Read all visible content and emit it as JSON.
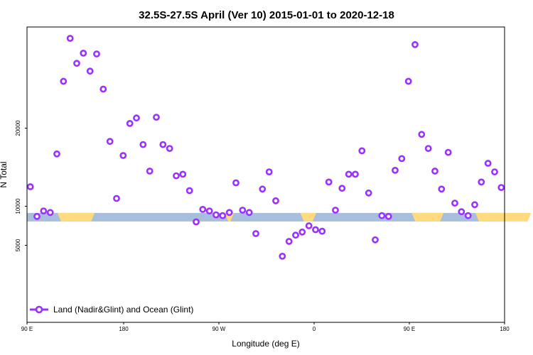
{
  "chart_data": {
    "type": "scatter",
    "title": "32.5S-27.5S April (Ver 10)   2015-01-01 to 2020-12-18",
    "xlabel": "Longitude (deg E)",
    "ylabel": "N Total",
    "xlim": [
      90,
      450
    ],
    "ylim": [
      3000,
      34500
    ],
    "x_ticks": [
      {
        "value": 90,
        "label": "90 E"
      },
      {
        "value": 180,
        "label": "180"
      },
      {
        "value": 270,
        "label": "90 W"
      },
      {
        "value": 360,
        "label": "0"
      },
      {
        "value": 450,
        "label": "90 E"
      },
      {
        "value": 540,
        "label": "180"
      }
    ],
    "y_ticks": [
      {
        "value": 5000,
        "label": "5000"
      },
      {
        "value": 10000,
        "label": "10000"
      },
      {
        "value": 20000,
        "label": "20000"
      }
    ],
    "grid": false,
    "legend": {
      "position": "bottom-left",
      "label": "Land (Nadir&Glint) and Ocean (Glint)",
      "color": "#9B30FF"
    },
    "band": {
      "y_center": 8600,
      "ocean_color": "#A8BEDD",
      "land_color": "#FFDA7F",
      "land_segments": [
        [
          113,
          141
        ],
        [
          239,
          246
        ],
        [
          296,
          308
        ],
        [
          380,
          404
        ],
        [
          428,
          470
        ]
      ]
    },
    "series": [
      {
        "name": "Land (Nadir&Glint) and Ocean (Glint)",
        "color": "#9B30FF",
        "x": [
          92.5,
          97.5,
          102.5,
          107.5,
          112.5,
          117.5,
          122.5,
          127.5,
          132.5,
          137.5,
          142.5,
          147.5,
          152.5,
          157.5,
          162.5,
          167.5,
          172.5,
          177.5,
          182.5,
          187.5,
          192.5,
          197.5,
          202.5,
          207.5,
          212.5,
          217.5,
          222.5,
          227.5,
          232.5,
          237.5,
          242.5,
          247.5,
          252.5,
          257.5,
          262.5,
          267.5,
          272.5,
          277.5,
          282.5,
          287.5,
          292.5,
          297.5,
          302.5,
          307.5,
          312.5,
          317.5,
          322.5,
          327.5,
          332.5,
          337.5,
          342.5,
          347.5,
          352.5,
          357.5,
          362.5,
          367.5,
          372.5,
          377.5,
          382.5,
          387.5,
          392.5,
          397.5,
          402.5,
          407.5,
          412.5,
          417.5,
          422.5,
          427.5,
          432.5,
          437.5,
          442.5,
          447.5
        ],
        "y": [
          12500,
          8700,
          9400,
          9200,
          16700,
          26000,
          31500,
          28300,
          29600,
          27300,
          29500,
          25000,
          18300,
          11000,
          16500,
          20600,
          21300,
          17900,
          14500,
          21400,
          17900,
          17400,
          13900,
          14100,
          12000,
          8000,
          9600,
          9400,
          8900,
          8800,
          9200,
          13000,
          9500,
          9200,
          6500,
          12200,
          14400,
          10700,
          3600,
          5500,
          6300,
          6700,
          7500,
          7000,
          6800,
          13100,
          9500,
          12300,
          14100,
          14100,
          17100,
          11700,
          5700,
          8800,
          8700,
          14600,
          16100,
          26000,
          30700,
          19200,
          17400,
          14500,
          12200,
          16900,
          10400,
          9300,
          8800,
          10200,
          13100,
          15500,
          14400,
          12400
        ]
      }
    ]
  }
}
